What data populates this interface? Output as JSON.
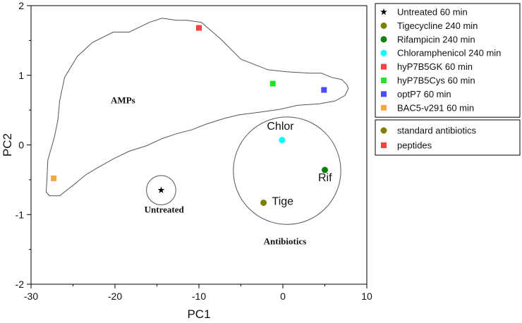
{
  "chart_data": {
    "type": "scatter",
    "title": "",
    "xlabel": "PC1",
    "ylabel": "PC2",
    "xlim": [
      -30,
      10
    ],
    "ylim": [
      -2,
      2
    ],
    "x_ticks": [
      -30,
      -20,
      -10,
      0,
      10
    ],
    "y_ticks": [
      -2,
      -1,
      0,
      1,
      2
    ],
    "x_tick_labels": [
      "-30",
      "-20",
      "-10",
      "0",
      "10"
    ],
    "y_tick_labels": [
      "-2",
      "-1",
      "0",
      "1",
      "2"
    ],
    "grid": false,
    "series": [
      {
        "name": "Untreated 60 min",
        "marker": "star",
        "color": "#000000",
        "x": [
          -14.5
        ],
        "y": [
          -0.65
        ]
      },
      {
        "name": "Tigecycline 240 min",
        "marker": "circle",
        "color": "#7f7f00",
        "x": [
          -2.3
        ],
        "y": [
          -0.83
        ]
      },
      {
        "name": "Rifampicin 240 min",
        "marker": "circle",
        "color": "#0f7f0f",
        "x": [
          5.0
        ],
        "y": [
          -0.36
        ]
      },
      {
        "name": "Chloramphenicol 240 min",
        "marker": "circle",
        "color": "#00ffff",
        "x": [
          -0.1
        ],
        "y": [
          0.07
        ]
      },
      {
        "name": "hyP7B5GK 60 min",
        "marker": "square",
        "color": "#ff4040",
        "x": [
          -10.0
        ],
        "y": [
          1.68
        ]
      },
      {
        "name": "hyP7B5Cys 60 min",
        "marker": "square",
        "color": "#22e32c",
        "x": [
          -1.2
        ],
        "y": [
          0.88
        ]
      },
      {
        "name": "optP7 60 min",
        "marker": "square",
        "color": "#4a4aff",
        "x": [
          4.9
        ],
        "y": [
          0.79
        ]
      },
      {
        "name": "BAC5-v291 60 min",
        "marker": "square",
        "color": "#f5a742",
        "x": [
          -27.3
        ],
        "y": [
          -0.48
        ]
      }
    ],
    "secondary_legend": [
      {
        "label": "standard antibiotics",
        "marker": "circle",
        "color": "#7f7f00"
      },
      {
        "label": "peptides",
        "marker": "square",
        "color": "#ff4040"
      }
    ],
    "group_labels": [
      {
        "text": "AMPs",
        "x": -20.5,
        "y": 0.6,
        "style": "serif-bold"
      },
      {
        "text": "Untreated",
        "x": -16.5,
        "y": -0.97,
        "style": "serif-bold"
      },
      {
        "text": "Antibiotics",
        "x": -2.3,
        "y": -1.43,
        "style": "serif-bold"
      }
    ],
    "point_labels": [
      {
        "text": "Chlor",
        "x": -1.9,
        "y": 0.22
      },
      {
        "text": "Rif",
        "x": 4.2,
        "y": -0.52
      },
      {
        "text": "Tige",
        "x": -1.3,
        "y": -0.86
      }
    ],
    "regions": [
      {
        "name": "AMPs",
        "shape": "polygon",
        "points": [
          [
            -27.8,
            -0.73
          ],
          [
            -28.2,
            -0.68
          ],
          [
            -28.1,
            -0.48
          ],
          [
            -28.0,
            -0.22
          ],
          [
            -27.2,
            0.12
          ],
          [
            -26.8,
            0.36
          ],
          [
            -26.6,
            0.63
          ],
          [
            -26.0,
            0.97
          ],
          [
            -24.5,
            1.27
          ],
          [
            -22.7,
            1.47
          ],
          [
            -20.2,
            1.62
          ],
          [
            -18.3,
            1.62
          ],
          [
            -15.9,
            1.76
          ],
          [
            -14.4,
            1.82
          ],
          [
            -12.7,
            1.79
          ],
          [
            -11.4,
            1.79
          ],
          [
            -9.7,
            1.76
          ],
          [
            -7.4,
            1.52
          ],
          [
            -5.0,
            1.23
          ],
          [
            -1.8,
            1.08
          ],
          [
            0.4,
            1.05
          ],
          [
            3.2,
            1.03
          ],
          [
            4.6,
            1.03
          ],
          [
            5.8,
            0.97
          ],
          [
            7.0,
            0.94
          ],
          [
            7.6,
            0.87
          ],
          [
            7.8,
            0.81
          ],
          [
            7.4,
            0.71
          ],
          [
            6.2,
            0.63
          ],
          [
            4.3,
            0.59
          ],
          [
            1.8,
            0.57
          ],
          [
            -0.4,
            0.51
          ],
          [
            -2.8,
            0.47
          ],
          [
            -5.3,
            0.43
          ],
          [
            -7.0,
            0.38
          ],
          [
            -9.1,
            0.3
          ],
          [
            -10.8,
            0.22
          ],
          [
            -12.7,
            0.16
          ],
          [
            -14.4,
            0.09
          ],
          [
            -16.2,
            -0.01
          ],
          [
            -18.3,
            -0.09
          ],
          [
            -20.2,
            -0.2
          ],
          [
            -22.1,
            -0.33
          ],
          [
            -23.5,
            -0.43
          ],
          [
            -25.0,
            -0.58
          ],
          [
            -26.6,
            -0.73
          ],
          [
            -27.8,
            -0.73
          ]
        ]
      },
      {
        "name": "Untreated",
        "shape": "circle",
        "cx": -14.5,
        "cy": -0.65,
        "r": 1.75
      },
      {
        "name": "Antibiotics",
        "shape": "circle",
        "cx": 0.5,
        "cy": -0.37,
        "r": 6.4
      }
    ]
  }
}
